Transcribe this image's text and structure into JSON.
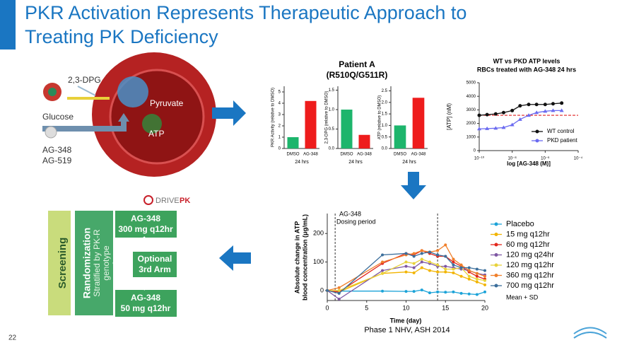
{
  "title": [
    "PKR Activation Represents Therapeutic Approach to",
    "Treating PK Deficiency"
  ],
  "page_number": "22",
  "mechanism": {
    "dpg": "2,3-DPG",
    "glucose": "Glucose",
    "pyruvate": "Pyruvate",
    "atp": "ATP",
    "compounds": [
      "AG-348",
      "AG-519"
    ]
  },
  "patient_a": {
    "title": "Patient A",
    "subtitle": "(R510Q/G511R)",
    "panels": [
      {
        "type": "bar",
        "y_label": "PKR Activity (relative to DMSO)",
        "categories": [
          "DMSO",
          "AG-348"
        ],
        "values": [
          1,
          4.2
        ],
        "colors": [
          "#1db56c",
          "#ee1c1c"
        ],
        "ylim": [
          0,
          5.5
        ],
        "yticks": [
          0,
          1,
          2,
          3,
          4,
          5
        ],
        "x_label": "24 hrs"
      },
      {
        "type": "bar",
        "y_label": "2,3-DPG (relative to DMSO)",
        "categories": [
          "DMSO",
          "AG-348"
        ],
        "values": [
          1.0,
          0.35
        ],
        "colors": [
          "#1db56c",
          "#ee1c1c"
        ],
        "ylim": [
          0,
          1.6
        ],
        "yticks": [
          {
            "value": 0,
            "label": "0.0"
          },
          0.5,
          {
            "value": 1,
            "label": "1.0"
          },
          1.5
        ],
        "x_label": "24 hrs"
      },
      {
        "type": "bar",
        "y_label": "ATP (relative to DMSO)",
        "categories": [
          "DMSO",
          "AG-348"
        ],
        "values": [
          1.0,
          2.2
        ],
        "colors": [
          "#1db56c",
          "#ee1c1c"
        ],
        "ylim": [
          0,
          2.7
        ],
        "yticks": [
          {
            "value": 0,
            "label": "0.0"
          },
          0.5,
          {
            "value": 1,
            "label": "1.0"
          },
          1.5,
          {
            "value": 2,
            "label": "2.0"
          },
          2.5
        ],
        "x_label": "24 hrs"
      }
    ]
  },
  "wt_vs_pkd": {
    "type": "line",
    "title": "WT vs PKD ATP levels",
    "subtitle": "RBCs treated with AG-348 24 hrs",
    "y_label": "[ATP] (nM)",
    "x_label": "log [AG-348 (M)]",
    "log_x": true,
    "x": [
      1e-10,
      3e-10,
      1e-09,
      3e-09,
      1e-08,
      3e-08,
      1e-07,
      3e-07,
      1e-06,
      3e-06,
      1e-05
    ],
    "xlim": [
      1e-10,
      0.0001
    ],
    "xticks": [
      {
        "value": 1e-10,
        "label": "10⁻¹⁰"
      },
      {
        "value": 1e-08,
        "label": "10⁻⁸"
      },
      {
        "value": 1e-06,
        "label": "10⁻⁶"
      },
      {
        "value": 0.0001,
        "label": "10⁻⁴"
      }
    ],
    "ylim": [
      0,
      5000
    ],
    "yticks": [
      0,
      1000,
      2000,
      3000,
      4000,
      5000
    ],
    "reference_line": 2600,
    "reference_color": "#e02020",
    "series": [
      {
        "name": "WT control",
        "color": "#111111",
        "marker": "circle",
        "values": [
          2600,
          2650,
          2700,
          2800,
          2950,
          3300,
          3400,
          3400,
          3400,
          3450,
          3500
        ]
      },
      {
        "name": "PKD patient",
        "color": "#6a6af0",
        "marker": "triangle",
        "values": [
          1600,
          1620,
          1650,
          1700,
          1900,
          2300,
          2600,
          2800,
          2900,
          2950,
          2950
        ]
      }
    ]
  },
  "flow": {
    "logo": [
      "DRIVE",
      "PK"
    ],
    "screening": "Screening",
    "randomization": "Randomization",
    "stratified": [
      "Stratified by PK-R",
      "genotype"
    ],
    "arm1": [
      "AG-348",
      "300 mg q12hr"
    ],
    "arm2": [
      "Optional",
      "3rd Arm"
    ],
    "arm3": [
      "AG-348",
      "50 mg q12hr"
    ]
  },
  "atp_change": {
    "type": "line",
    "annotation": [
      "AG-348",
      "Dosing period"
    ],
    "dosing_period": [
      1,
      14
    ],
    "y_label": [
      "Absolute change in ATP",
      "blood concentration (μg/mL)"
    ],
    "x_label": "Time (day)",
    "source": "Phase 1 NHV, ASH 2014",
    "note": "Mean + SD",
    "x": [
      0,
      1.5,
      7,
      10,
      11,
      12,
      13,
      14,
      15,
      16,
      17,
      18,
      19,
      20
    ],
    "xlim": [
      0,
      20
    ],
    "xticks": [
      0,
      5,
      10,
      15,
      20
    ],
    "ylim": [
      -35,
      270
    ],
    "yticks": [
      0,
      100,
      200
    ],
    "series": [
      {
        "name": "Placebo",
        "color": "#1ca3d8",
        "values": [
          0,
          -2,
          -2,
          -3,
          -3,
          2,
          -8,
          -5,
          -6,
          -5,
          -10,
          -12,
          -14,
          -5
        ]
      },
      {
        "name": "15 mg q12hr",
        "color": "#f2b400",
        "values": [
          0,
          -5,
          60,
          65,
          62,
          80,
          70,
          65,
          65,
          62,
          50,
          40,
          30,
          20
        ]
      },
      {
        "name": "60 mg q12hr",
        "color": "#e3271c",
        "values": [
          0,
          -5,
          95,
          130,
          125,
          140,
          130,
          120,
          120,
          100,
          85,
          65,
          50,
          40
        ]
      },
      {
        "name": "120 mg q24hr",
        "color": "#7e57a3",
        "values": [
          0,
          -30,
          70,
          85,
          80,
          100,
          95,
          85,
          85,
          80,
          75,
          70,
          60,
          55
        ]
      },
      {
        "name": "120 mg q12hr",
        "color": "#e8d23a",
        "values": [
          0,
          0,
          60,
          100,
          95,
          110,
          100,
          90,
          75,
          75,
          80,
          50,
          40,
          35
        ]
      },
      {
        "name": "360 mg q12hr",
        "color": "#f07f2a",
        "values": [
          0,
          10,
          100,
          125,
          130,
          140,
          135,
          140,
          160,
          110,
          90,
          70,
          60,
          50
        ]
      },
      {
        "name": "700 mg q12hr",
        "color": "#3b6e9b",
        "values": [
          0,
          -10,
          125,
          130,
          120,
          130,
          135,
          125,
          120,
          90,
          80,
          80,
          75,
          70
        ]
      }
    ]
  }
}
